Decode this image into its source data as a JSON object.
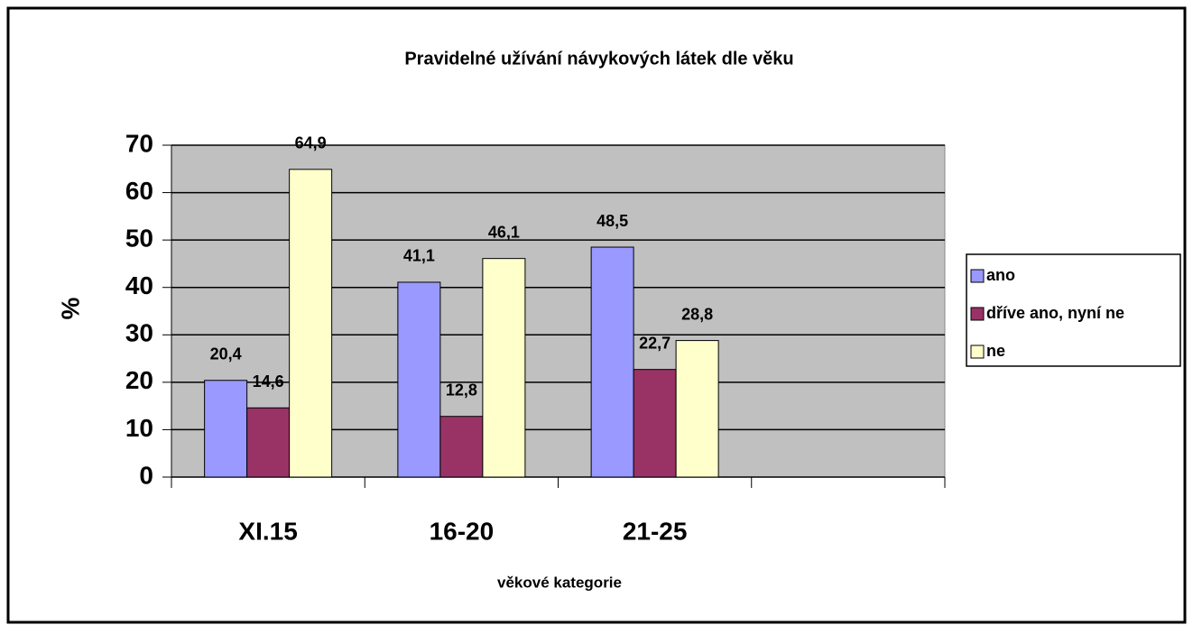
{
  "chart_data": {
    "type": "bar",
    "title": "Pravidelné užívání návykových látek dle věku",
    "x_label": "věkové kategorie",
    "y_label": "%",
    "categories": [
      "XI.15",
      "16-20",
      "21-25",
      null
    ],
    "series": [
      {
        "name": "ano",
        "color": "#9999ff",
        "values": [
          20.4,
          41.1,
          48.5,
          null
        ],
        "value_labels": [
          "20,4",
          "41,1",
          "48,5",
          null
        ]
      },
      {
        "name": "dříve ano, nyní ne",
        "color": "#993366",
        "values": [
          14.6,
          12.8,
          22.7,
          null
        ],
        "value_labels": [
          "14,6",
          "12,8",
          "22,7",
          null
        ]
      },
      {
        "name": "ne",
        "color": "#ffffcc",
        "values": [
          64.9,
          46.1,
          28.8,
          null
        ],
        "value_labels": [
          "64,9",
          "46,1",
          "28,8",
          null
        ]
      }
    ],
    "ylim": [
      0,
      70
    ],
    "yticks": [
      0,
      10,
      20,
      30,
      40,
      50,
      60,
      70
    ],
    "grid": true,
    "legend": "right",
    "plot_background": "#c0c0c0"
  }
}
